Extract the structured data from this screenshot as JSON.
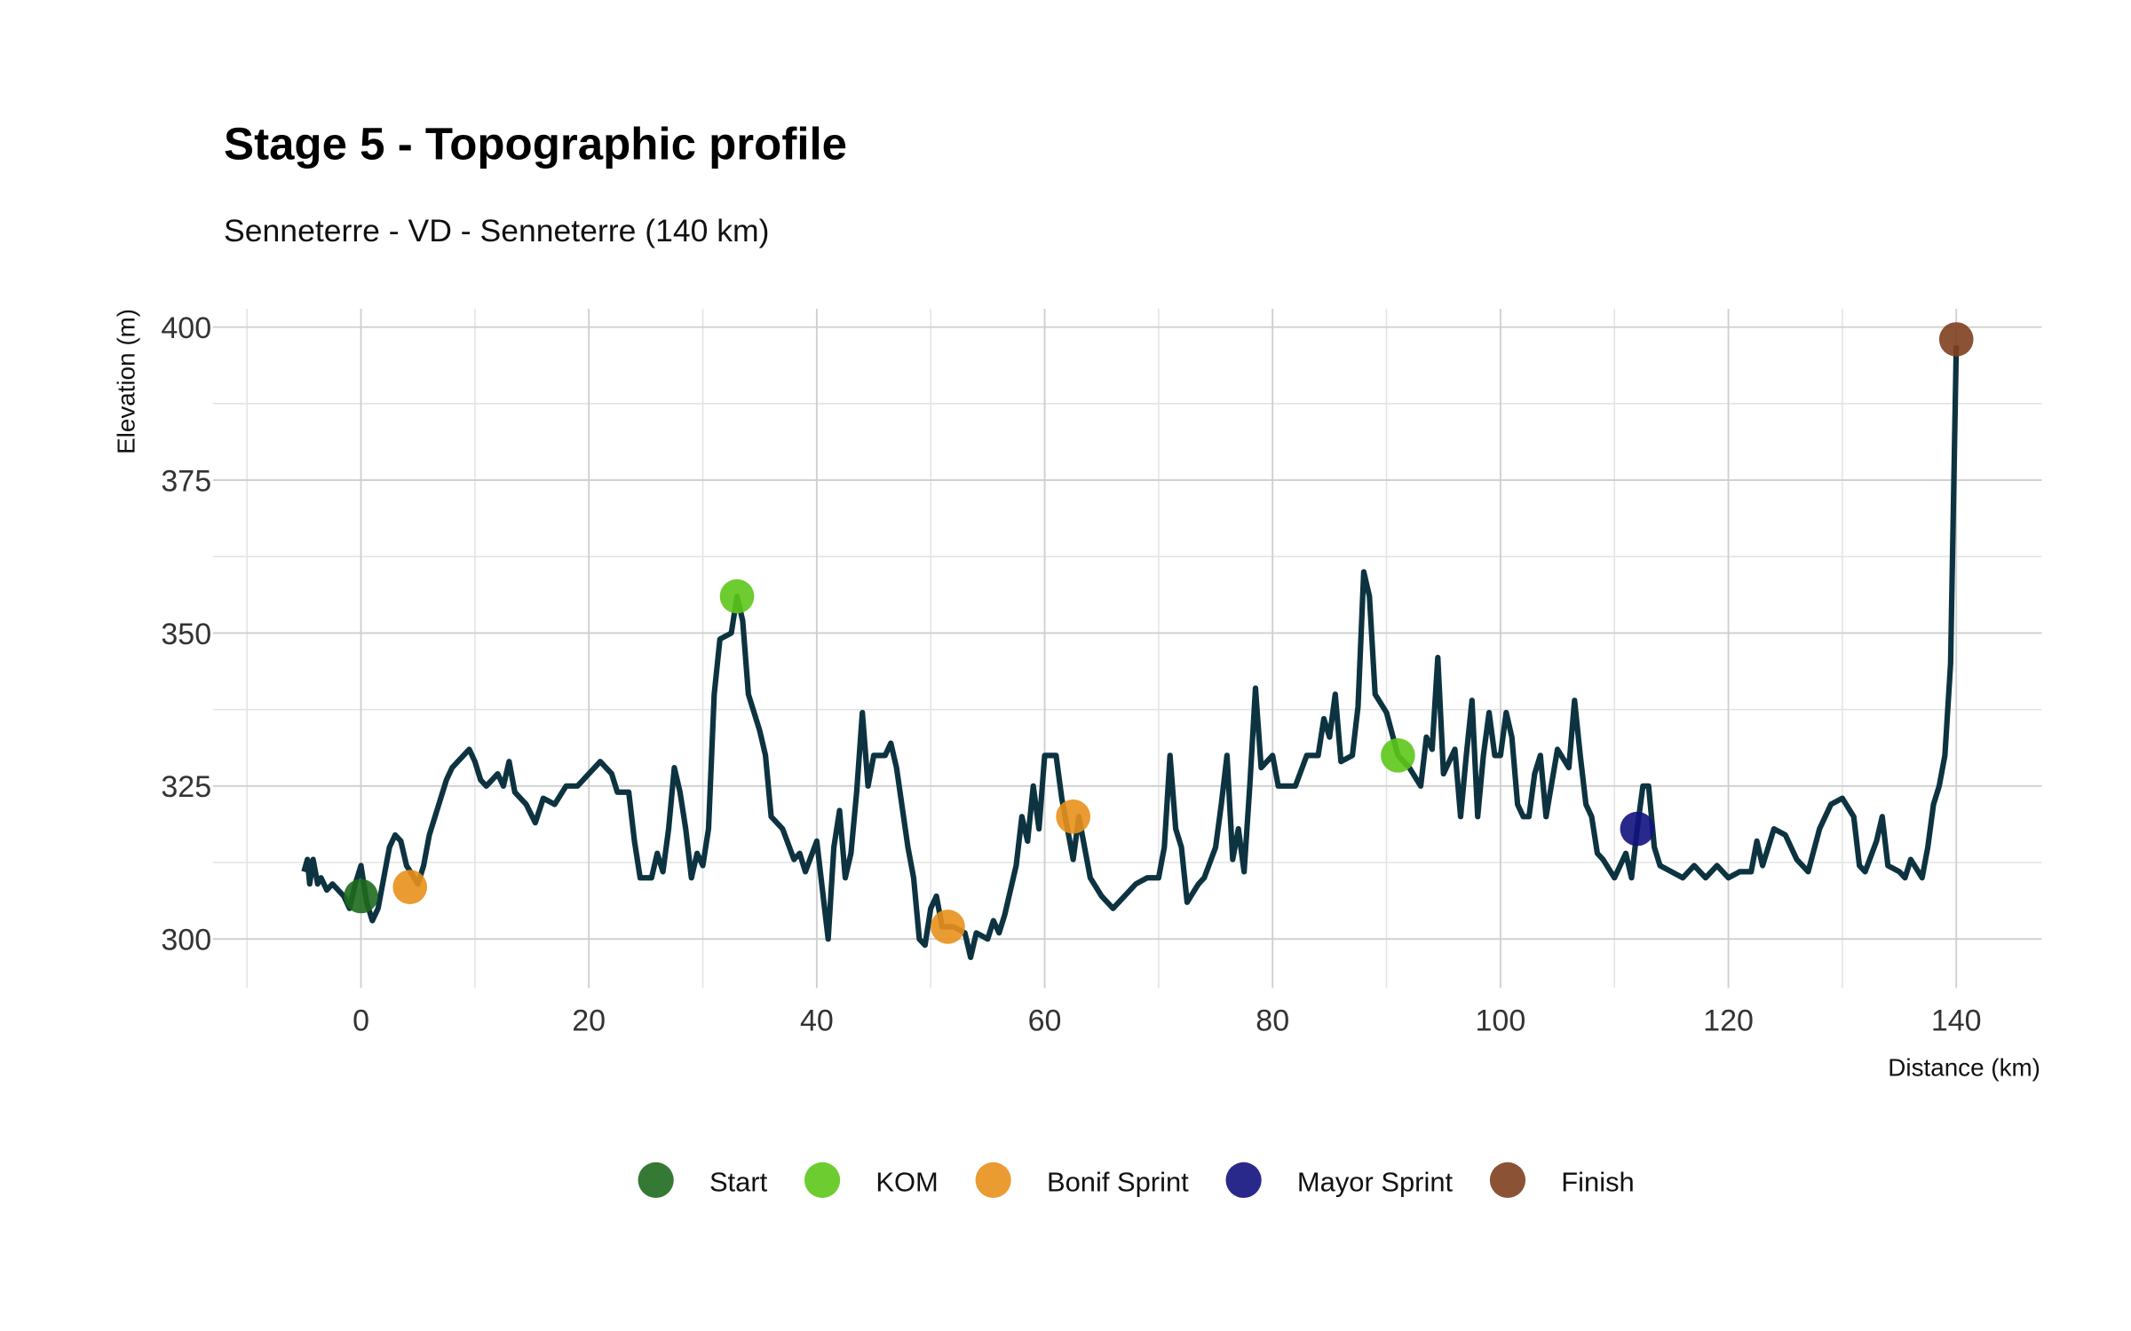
{
  "chart_data": {
    "type": "line",
    "title": "Stage 5 - Topographic profile",
    "subtitle": "Senneterre - VD - Senneterre (140 km)",
    "x_label": "Distance (km)",
    "y_label": "Elevation (m)",
    "xlim": [
      -13,
      147.5
    ],
    "ylim": [
      292,
      403
    ],
    "xticks": [
      0,
      20,
      40,
      60,
      80,
      100,
      120,
      140
    ],
    "yticks": [
      300,
      325,
      350,
      375,
      400
    ],
    "x_minor_ticks": [
      -10,
      10,
      30,
      50,
      70,
      90,
      110,
      130
    ],
    "y_minor_ticks": [
      312.5,
      337.5,
      362.5,
      387.5
    ],
    "grid": true,
    "legend_position": "bottom",
    "line": {
      "color": "#0d3340",
      "x": [
        -5,
        -4.7,
        -4.5,
        -4.2,
        -3.8,
        -3.5,
        -3,
        -2.5,
        -2,
        -1.5,
        -1,
        -0.5,
        0,
        0.5,
        1,
        1.5,
        2,
        2.5,
        3,
        3.5,
        4,
        5,
        5.5,
        6,
        6.5,
        7,
        7.5,
        8,
        8.5,
        9,
        9.5,
        10,
        10.5,
        11,
        12,
        12.5,
        13,
        13.5,
        14.5,
        15.3,
        16,
        17,
        18,
        19,
        20,
        21,
        22,
        22.5,
        23.5,
        24,
        24.5,
        25.5,
        26,
        26.5,
        27,
        27.5,
        28,
        28.5,
        29,
        29.5,
        30,
        30.5,
        31,
        31.5,
        32.5,
        33,
        33.5,
        34,
        35,
        35.5,
        36,
        37,
        38,
        38.5,
        39,
        40,
        40.5,
        41,
        41.5,
        42,
        42.5,
        43,
        43.5,
        44,
        44.5,
        45,
        46,
        46.5,
        47,
        48,
        48.5,
        49,
        49.5,
        50,
        50.5,
        51,
        52,
        53,
        53.5,
        54,
        55,
        55.5,
        56,
        56.5,
        57,
        57.5,
        58,
        58.5,
        59,
        59.5,
        60,
        61,
        61.5,
        62,
        62.5,
        63,
        63.5,
        64,
        65,
        66,
        67,
        68,
        69,
        70,
        70.5,
        71,
        71.5,
        72,
        72.5,
        73.5,
        74,
        75,
        75.5,
        76,
        76.5,
        77,
        77.5,
        78,
        78.5,
        79,
        80,
        80.5,
        82,
        83,
        84,
        84.5,
        85,
        85.5,
        86,
        87,
        87.5,
        88,
        88.5,
        89,
        90,
        91,
        92,
        93,
        93.5,
        94,
        94.5,
        95,
        96,
        96.5,
        97,
        97.5,
        98,
        98.5,
        99,
        99.5,
        100,
        100.5,
        101,
        101.5,
        102,
        102.5,
        103,
        103.5,
        104,
        105,
        106,
        106.5,
        107,
        107.5,
        108,
        108.5,
        109,
        110,
        111,
        111.5,
        112,
        112.5,
        113,
        113.5,
        114,
        115,
        116,
        117,
        118,
        119,
        120,
        121,
        122,
        122.5,
        123,
        124,
        125,
        126,
        127,
        128,
        129,
        130,
        131,
        131.5,
        132,
        133,
        133.5,
        134,
        135,
        135.5,
        136,
        137,
        137.5,
        138,
        138.5,
        139,
        139.5,
        140
      ],
      "y": [
        311,
        313,
        309,
        313,
        309,
        310,
        308,
        309,
        308,
        307,
        305,
        309,
        312,
        306,
        303,
        305,
        310,
        315,
        317,
        316,
        312,
        309,
        312,
        317,
        320,
        323,
        326,
        328,
        329,
        330,
        331,
        329,
        326,
        325,
        327,
        325,
        329,
        324,
        322,
        319,
        323,
        322,
        325,
        325,
        327,
        329,
        327,
        324,
        324,
        316,
        310,
        310,
        314,
        311,
        318,
        328,
        324,
        318,
        310,
        314,
        312,
        318,
        340,
        349,
        350,
        356,
        352,
        340,
        334,
        330,
        320,
        318,
        313,
        314,
        311,
        316,
        308,
        300,
        315,
        321,
        310,
        314,
        324,
        337,
        325,
        330,
        330,
        332,
        328,
        315,
        310,
        300,
        299,
        305,
        307,
        302,
        302,
        301,
        297,
        301,
        300,
        303,
        301,
        304,
        308,
        312,
        320,
        316,
        325,
        318,
        330,
        330,
        323,
        318,
        313,
        320,
        315,
        310,
        307,
        305,
        307,
        309,
        310,
        310,
        315,
        330,
        318,
        315,
        306,
        309,
        310,
        315,
        322,
        330,
        313,
        318,
        311,
        325,
        341,
        328,
        330,
        325,
        325,
        330,
        330,
        336,
        333,
        340,
        329,
        330,
        338,
        360,
        356,
        340,
        337,
        330,
        328,
        325,
        333,
        331,
        346,
        327,
        331,
        320,
        330,
        339,
        320,
        330,
        337,
        330,
        330,
        337,
        333,
        322,
        320,
        320,
        327,
        330,
        320,
        331,
        328,
        339,
        330,
        322,
        320,
        314,
        313,
        310,
        314,
        310,
        318,
        325,
        325,
        315,
        312,
        311,
        310,
        312,
        310,
        312,
        310,
        311,
        311,
        316,
        312,
        318,
        317,
        313,
        311,
        318,
        322,
        323,
        320,
        312,
        311,
        316,
        320,
        312,
        311,
        310,
        313,
        310,
        315,
        322,
        325,
        330,
        345,
        397
      ]
    },
    "points": [
      {
        "name": "Start",
        "color": "#1e6a1e",
        "x": [
          0
        ],
        "y": [
          307
        ]
      },
      {
        "name": "KOM",
        "color": "#5dc71a",
        "x": [
          33,
          91
        ],
        "y": [
          356,
          330
        ]
      },
      {
        "name": "Bonif Sprint",
        "color": "#e8901c",
        "x": [
          4.3,
          51.5,
          62.5
        ],
        "y": [
          308.5,
          302,
          320
        ]
      },
      {
        "name": "Mayor Sprint",
        "color": "#12127f",
        "x": [
          112
        ],
        "y": [
          318
        ]
      },
      {
        "name": "Finish",
        "color": "#7f3f1f",
        "x": [
          140
        ],
        "y": [
          398
        ]
      }
    ]
  }
}
